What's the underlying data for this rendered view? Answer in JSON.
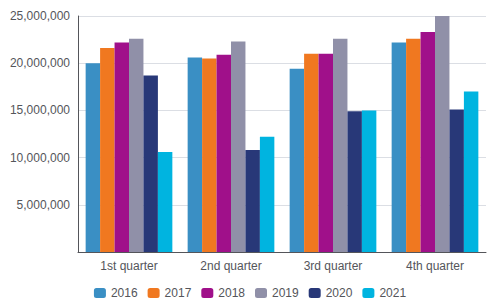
{
  "chart_data": {
    "type": "bar",
    "categories": [
      "1st quarter",
      "2nd quarter",
      "3rd quarter",
      "4th quarter"
    ],
    "series": [
      {
        "name": "2016",
        "color": "#3a8fc4",
        "values": [
          20000000,
          20600000,
          19400000,
          22200000
        ]
      },
      {
        "name": "2017",
        "color": "#f07820",
        "values": [
          21600000,
          20500000,
          21000000,
          22600000
        ]
      },
      {
        "name": "2018",
        "color": "#a0108a",
        "values": [
          22200000,
          20900000,
          21000000,
          23300000
        ]
      },
      {
        "name": "2019",
        "color": "#9090a8",
        "values": [
          22600000,
          22300000,
          22600000,
          25000000
        ]
      },
      {
        "name": "2020",
        "color": "#283878",
        "values": [
          18700000,
          10800000,
          14900000,
          15100000
        ]
      },
      {
        "name": "2021",
        "color": "#00b4e0",
        "values": [
          10600000,
          12200000,
          15000000,
          17000000
        ]
      }
    ],
    "ylim": [
      0,
      25000000
    ],
    "yticks": [
      {
        "value": 5000000,
        "label": "5,000,000"
      },
      {
        "value": 10000000,
        "label": "10,000,000"
      },
      {
        "value": 15000000,
        "label": "15,000,000"
      },
      {
        "value": 20000000,
        "label": "20,000,000"
      },
      {
        "value": 25000000,
        "label": "25,000,000"
      }
    ],
    "grid": true,
    "legend": "bottom"
  }
}
